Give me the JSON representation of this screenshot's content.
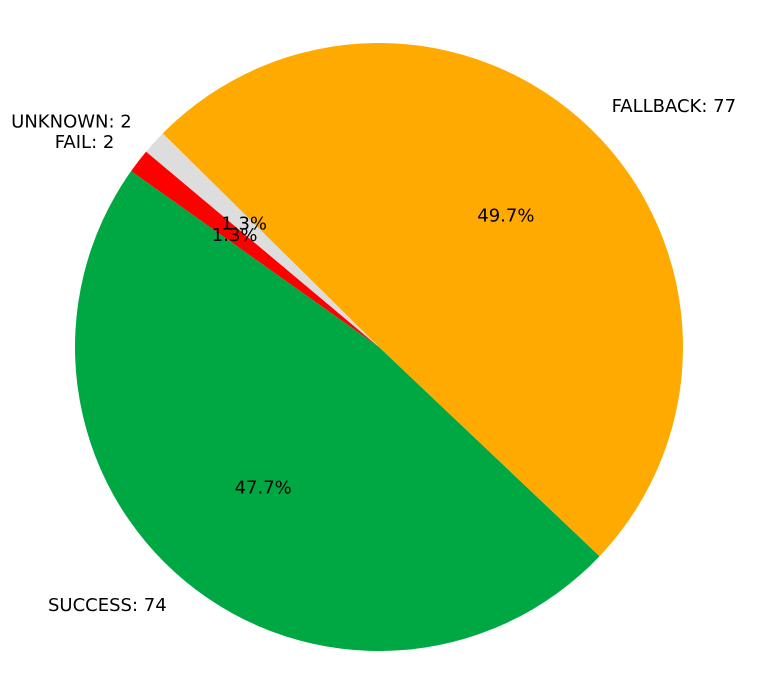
{
  "chart_data": {
    "type": "pie",
    "title": "",
    "start_angle_deg": 140,
    "direction": "counterclockwise",
    "slices": [
      {
        "label": "FAIL",
        "value": 2,
        "label_text": "FAIL: 2",
        "pct_text": "1.3%",
        "color": "#ff0000"
      },
      {
        "label": "SUCCESS",
        "value": 74,
        "label_text": "SUCCESS: 74",
        "pct_text": "47.7%",
        "color": "#00a844"
      },
      {
        "label": "FALLBACK",
        "value": 77,
        "label_text": "FALLBACK: 77",
        "pct_text": "49.7%",
        "color": "#ffaa00"
      },
      {
        "label": "UNKNOWN",
        "value": 2,
        "label_text": "UNKNOWN: 2",
        "pct_text": "1.3%",
        "color": "#dddddd"
      }
    ]
  }
}
